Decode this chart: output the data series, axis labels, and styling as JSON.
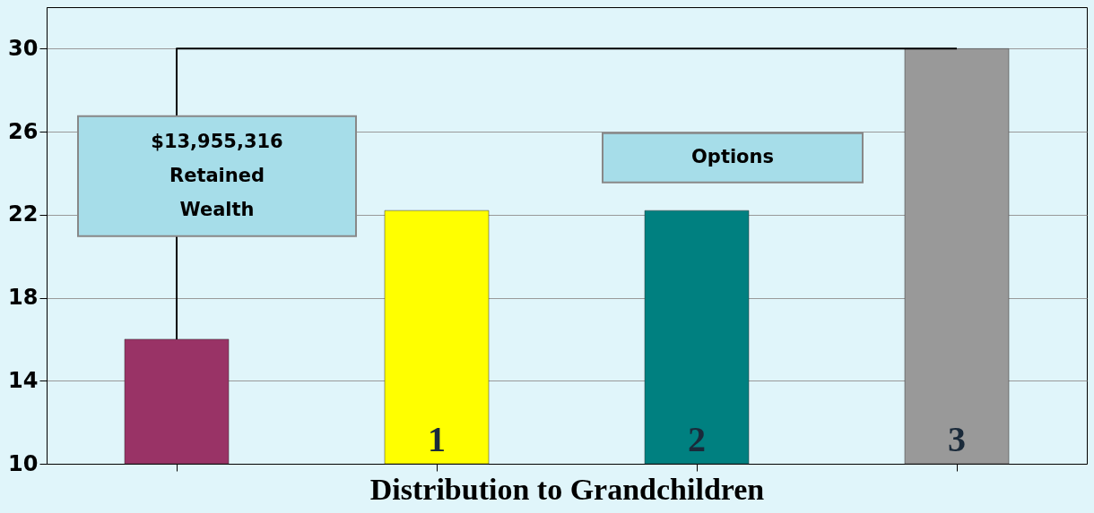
{
  "chart_data": {
    "type": "bar",
    "xlabel": "Distribution to Grandchildren",
    "categories": [
      null,
      "1",
      "2",
      "3"
    ],
    "values": [
      16,
      22.2,
      22.2,
      30
    ],
    "colors": [
      "#993366",
      "#ffff00",
      "#008080",
      "#999999"
    ],
    "ylim": [
      10,
      32
    ],
    "yticks": [
      10,
      14,
      18,
      22,
      26,
      30
    ],
    "grid": "y",
    "ref_lines": [
      {
        "axis": "y",
        "value": 30,
        "color": "#000000"
      }
    ],
    "annotations": [
      "$13,955,316\nRetained\nWealth",
      "Options"
    ]
  }
}
